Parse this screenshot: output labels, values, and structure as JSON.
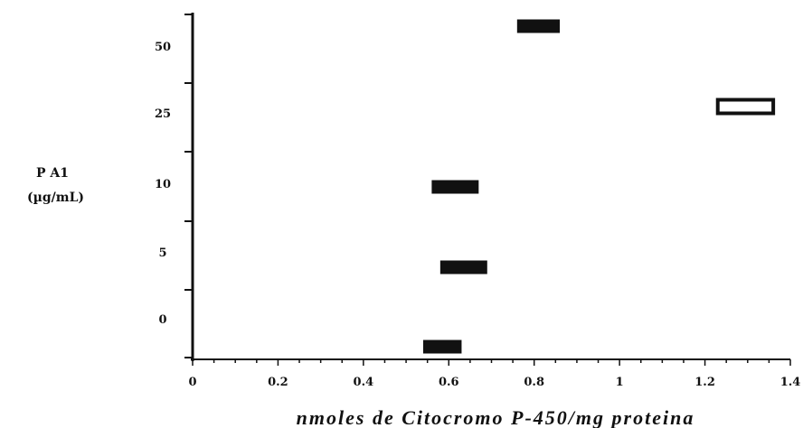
{
  "chart_data": {
    "type": "bar",
    "orientation": "horizontal-floating",
    "xlabel": "nmoles de Citocromo P-450/mg proteina",
    "ylabel_line1": "P A1",
    "ylabel_line2": "(µg/mL)",
    "x_ticks": [
      "0",
      "0.2",
      "0.4",
      "0.6",
      "0.8",
      "1",
      "1.2",
      "1.4"
    ],
    "xlim": [
      0,
      1.4
    ],
    "y_categories": [
      "0",
      "5",
      "10",
      "25",
      "50"
    ],
    "bars": [
      {
        "category": "0",
        "x_start": 0.54,
        "x_end": 0.63,
        "fill": "black"
      },
      {
        "category": "5",
        "x_start": 0.58,
        "x_end": 0.69,
        "fill": "black"
      },
      {
        "category": "10",
        "x_start": 0.56,
        "x_end": 0.67,
        "fill": "black"
      },
      {
        "category": "25",
        "x_start": 1.23,
        "x_end": 1.36,
        "fill": "white"
      },
      {
        "category": "50",
        "x_start": 0.76,
        "x_end": 0.86,
        "fill": "black"
      }
    ]
  }
}
